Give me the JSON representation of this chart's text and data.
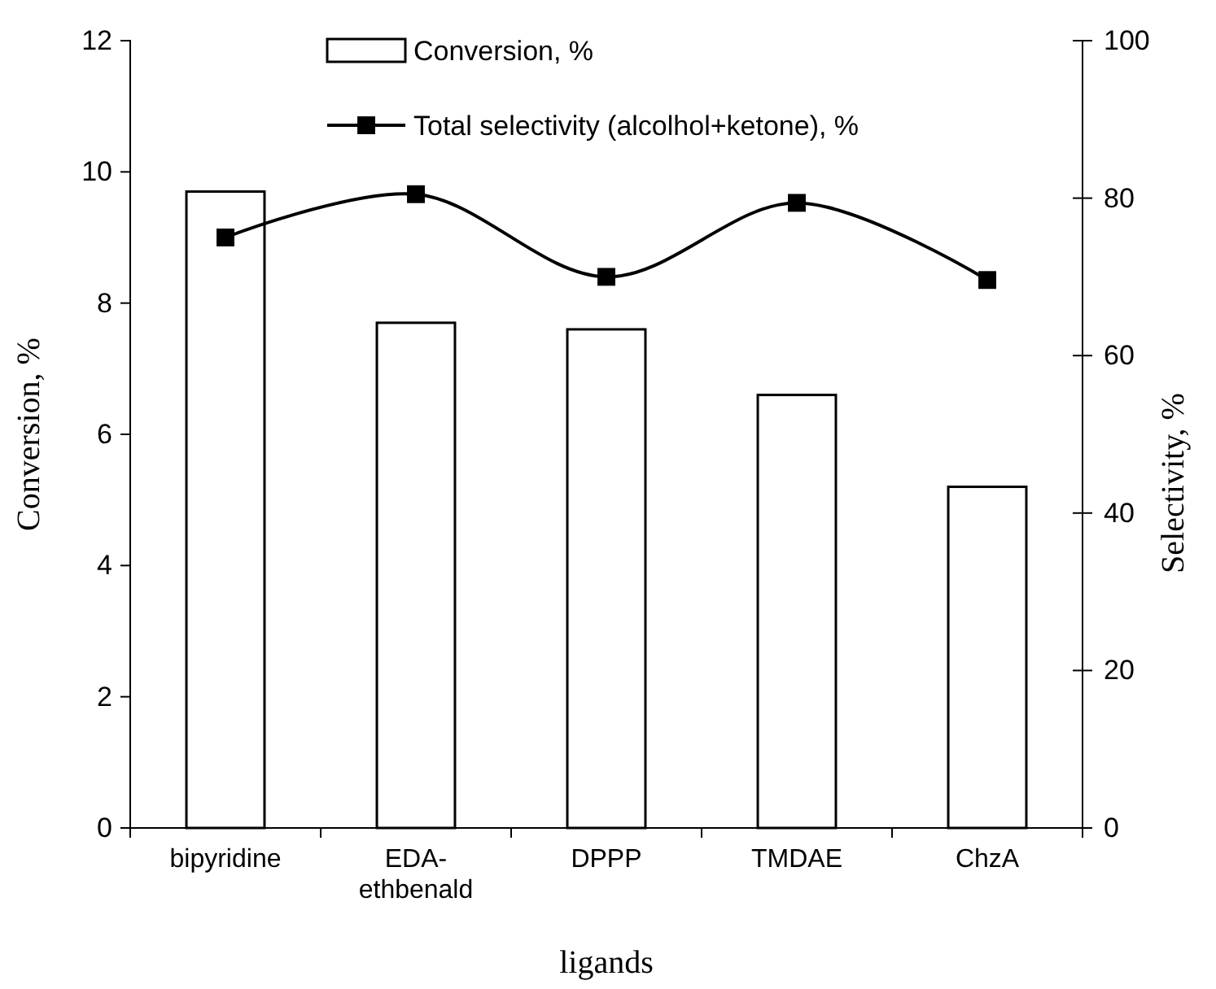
{
  "chart_data": {
    "type": "bar",
    "xlabel": "ligands",
    "ylabel": "Conversion, %",
    "y2label": "Selectivity, %",
    "categories": [
      "bipyridine",
      "EDA-ethbenald",
      "DPPP",
      "TMDAE",
      "ChzA"
    ],
    "series": [
      {
        "name": "Conversion, %",
        "color": "#ffffff",
        "values": [
          9.7,
          7.7,
          7.6,
          6.6,
          5.2
        ]
      },
      {
        "name": "Total selectivity (alcolhol+ketone), %",
        "type": "line",
        "axis": "y2",
        "color": "#000000",
        "values": [
          75,
          80.5,
          70,
          79.4,
          69.6
        ]
      }
    ],
    "ylim": [
      0,
      12
    ],
    "yticks": [
      0,
      2,
      4,
      6,
      8,
      10,
      12
    ],
    "y2lim": [
      0,
      100
    ],
    "y2ticks": [
      0,
      20,
      40,
      60,
      80,
      100
    ],
    "marker": "square",
    "line_style": "solid",
    "grid": false,
    "legend": "top"
  }
}
